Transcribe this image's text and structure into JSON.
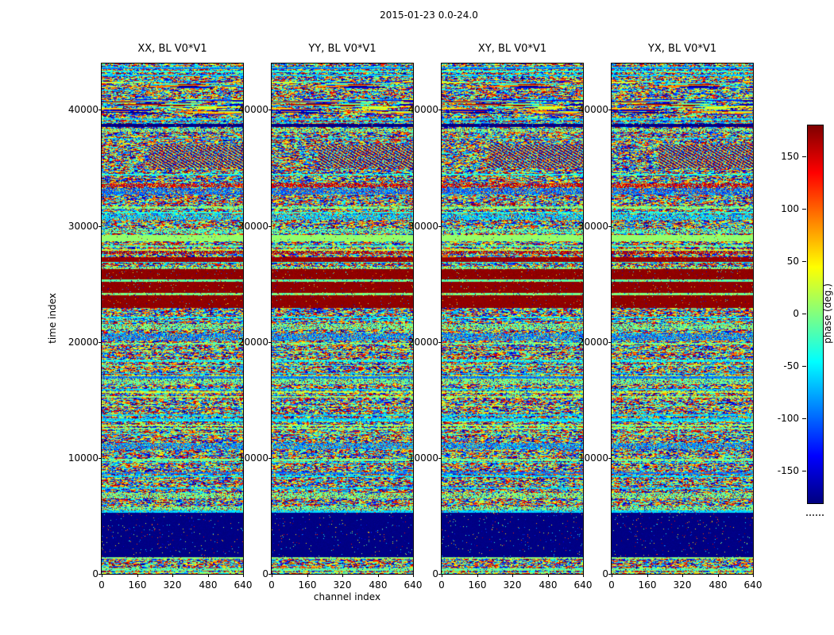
{
  "chart_data": {
    "type": "heatmap",
    "suptitle": "2015-01-23 0.0-24.0",
    "xlabel": "channel index",
    "ylabel": "time index",
    "panels": [
      {
        "title": "XX, BL V0*V1"
      },
      {
        "title": "YY, BL V0*V1"
      },
      {
        "title": "XY, BL V0*V1"
      },
      {
        "title": "YX, BL V0*V1"
      }
    ],
    "x_ticks": [
      0,
      160,
      320,
      480,
      640
    ],
    "y_ticks": [
      0,
      10000,
      20000,
      30000,
      40000
    ],
    "x_range": [
      0,
      640
    ],
    "y_range": [
      0,
      44000
    ],
    "colormap": "jet",
    "colorbar": {
      "label": "phase (deg.)",
      "ticks": [
        150,
        100,
        50,
        0,
        -50,
        -100,
        -150
      ],
      "vmin": -180,
      "vmax": 180
    },
    "value_units": "degrees",
    "description": "Waterfall plots of visibility phase versus channel index (x) and time index (y) for the four polarization products XX, YY, XY, YX of baseline V0*V1 over 2015-01-23 0.0-24.0 h. Content is mostly random phase noise with shared horizontal bands of coherent phase: a flat -180 deg (dark blue) block near time 1400-5300, thick +175 deg (dark red) bands around time 22900-27300, cyan/green coherent lines throughout, a dark line near 38600, and wavy interference patterns near time 35000-37000.",
    "bands": [
      {
        "t0": 280,
        "t1": 490,
        "type": "line",
        "v": -10
      },
      {
        "t0": 1280,
        "t1": 1430,
        "type": "line",
        "v": 5
      },
      {
        "t0": 1430,
        "t1": 5300,
        "type": "solid",
        "v": -178
      },
      {
        "t0": 5300,
        "t1": 5450,
        "type": "line",
        "v": -60
      },
      {
        "t0": 5450,
        "t1": 5850,
        "type": "mixed",
        "v": -10
      },
      {
        "t0": 6500,
        "t1": 7000,
        "type": "mixed",
        "v": 0
      },
      {
        "t0": 8350,
        "t1": 8500,
        "type": "line",
        "v": -55
      },
      {
        "t0": 9700,
        "t1": 9900,
        "type": "line",
        "v": -5
      },
      {
        "t0": 10750,
        "t1": 11300,
        "type": "mixed",
        "v": -80
      },
      {
        "t0": 12450,
        "t1": 12620,
        "type": "line",
        "v": 0
      },
      {
        "t0": 13270,
        "t1": 13420,
        "type": "line",
        "v": -60
      },
      {
        "t0": 15180,
        "t1": 15330,
        "type": "line",
        "v": 10
      },
      {
        "t0": 16350,
        "t1": 16800,
        "type": "mixed",
        "v": -5
      },
      {
        "t0": 18260,
        "t1": 18420,
        "type": "line",
        "v": -50
      },
      {
        "t0": 20100,
        "t1": 20700,
        "type": "mixed",
        "v": -85
      },
      {
        "t0": 21050,
        "t1": 21550,
        "type": "mixed",
        "v": -5
      },
      {
        "t0": 22900,
        "t1": 24000,
        "type": "solid",
        "v": 175
      },
      {
        "t0": 24000,
        "t1": 24250,
        "type": "line",
        "v": 0
      },
      {
        "t0": 24250,
        "t1": 25150,
        "type": "solid",
        "v": 175
      },
      {
        "t0": 25150,
        "t1": 25400,
        "type": "line",
        "v": -10
      },
      {
        "t0": 25400,
        "t1": 26250,
        "type": "solid",
        "v": 175
      },
      {
        "t0": 26250,
        "t1": 26500,
        "type": "mixed",
        "v": 0
      },
      {
        "t0": 26900,
        "t1": 27300,
        "type": "solid",
        "v": 172
      },
      {
        "t0": 27550,
        "t1": 27850,
        "type": "mixed",
        "v": 160
      },
      {
        "t0": 28650,
        "t1": 29200,
        "type": "solid",
        "v": 8
      },
      {
        "t0": 29350,
        "t1": 29800,
        "type": "mixed",
        "v": -15
      },
      {
        "t0": 30550,
        "t1": 31000,
        "type": "mixed",
        "v": -60
      },
      {
        "t0": 31470,
        "t1": 31650,
        "type": "line",
        "v": 0
      },
      {
        "t0": 32750,
        "t1": 33250,
        "type": "mixed",
        "v": -95
      },
      {
        "t0": 33300,
        "t1": 33700,
        "type": "mixed",
        "v": 150
      },
      {
        "t0": 35000,
        "t1": 37000,
        "type": "moire"
      },
      {
        "t0": 38100,
        "t1": 38400,
        "type": "mixed",
        "v": 0
      },
      {
        "t0": 38500,
        "t1": 38800,
        "type": "solid",
        "v": -178
      },
      {
        "t0": 39150,
        "t1": 39300,
        "type": "line",
        "v": -60
      },
      {
        "t0": 39550,
        "t1": 40900,
        "type": "streaks"
      },
      {
        "t0": 41700,
        "t1": 42500,
        "type": "streaks"
      }
    ]
  }
}
